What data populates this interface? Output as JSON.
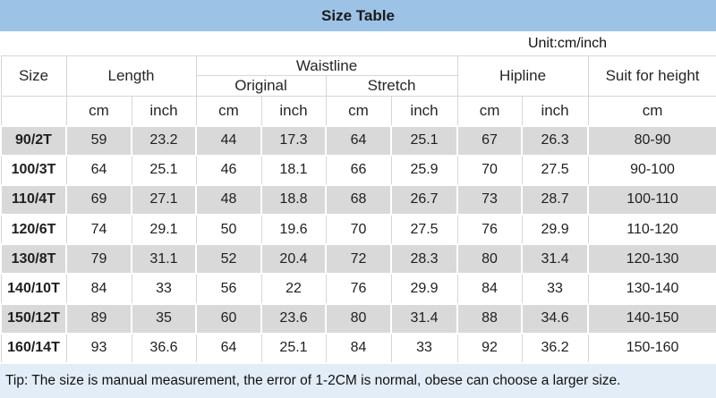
{
  "title": "Size Table",
  "unit_note": "Unit:cm/inch",
  "tip": "Tip: The size is manual measurement, the error of 1-2CM is normal, obese can choose a larger size.",
  "colors": {
    "title_bg": "#9cc2e6",
    "row_alt": "#d9d9d9",
    "tip_bg": "#e3edf8",
    "size_red": "#e11616",
    "grid": "#d6d6d6"
  },
  "headers": {
    "size": "Size",
    "length": "Length",
    "waistline": "Waistline",
    "original": "Original",
    "stretch": "Stretch",
    "hipline": "Hipline",
    "suit_for_height": "Suit for height"
  },
  "unit_headers": [
    "cm",
    "inch",
    "cm",
    "inch",
    "cm",
    "inch",
    "cm",
    "inch",
    "cm"
  ],
  "rows": [
    {
      "size": "90/2T",
      "values": [
        "59",
        "23.2",
        "44",
        "17.3",
        "64",
        "25.1",
        "67",
        "26.3",
        "80-90"
      ]
    },
    {
      "size": "100/3T",
      "values": [
        "64",
        "25.1",
        "46",
        "18.1",
        "66",
        "25.9",
        "70",
        "27.5",
        "90-100"
      ]
    },
    {
      "size": "110/4T",
      "values": [
        "69",
        "27.1",
        "48",
        "18.8",
        "68",
        "26.7",
        "73",
        "28.7",
        "100-110"
      ]
    },
    {
      "size": "120/6T",
      "values": [
        "74",
        "29.1",
        "50",
        "19.6",
        "70",
        "27.5",
        "76",
        "29.9",
        "110-120"
      ]
    },
    {
      "size": "130/8T",
      "values": [
        "79",
        "31.1",
        "52",
        "20.4",
        "72",
        "28.3",
        "80",
        "31.4",
        "120-130"
      ]
    },
    {
      "size": "140/10T",
      "values": [
        "84",
        "33",
        "56",
        "22",
        "76",
        "29.9",
        "84",
        "33",
        "130-140"
      ]
    },
    {
      "size": "150/12T",
      "values": [
        "89",
        "35",
        "60",
        "23.6",
        "80",
        "31.4",
        "88",
        "34.6",
        "140-150"
      ]
    },
    {
      "size": "160/14T",
      "values": [
        "93",
        "36.6",
        "64",
        "25.1",
        "84",
        "33",
        "92",
        "36.2",
        "150-160"
      ]
    }
  ],
  "chart_data": {
    "type": "table",
    "title": "Size Table",
    "unit": "cm/inch",
    "columns": [
      "Size",
      "Length cm",
      "Length inch",
      "Waistline Original cm",
      "Waistline Original inch",
      "Waistline Stretch cm",
      "Waistline Stretch inch",
      "Hipline cm",
      "Hipline inch",
      "Suit for height cm"
    ],
    "rows": [
      [
        "90/2T",
        59,
        23.2,
        44,
        17.3,
        64,
        25.1,
        67,
        26.3,
        "80-90"
      ],
      [
        "100/3T",
        64,
        25.1,
        46,
        18.1,
        66,
        25.9,
        70,
        27.5,
        "90-100"
      ],
      [
        "110/4T",
        69,
        27.1,
        48,
        18.8,
        68,
        26.7,
        73,
        28.7,
        "100-110"
      ],
      [
        "120/6T",
        74,
        29.1,
        50,
        19.6,
        70,
        27.5,
        76,
        29.9,
        "110-120"
      ],
      [
        "130/8T",
        79,
        31.1,
        52,
        20.4,
        72,
        28.3,
        80,
        31.4,
        "120-130"
      ],
      [
        "140/10T",
        84,
        33,
        56,
        22,
        76,
        29.9,
        84,
        33,
        "130-140"
      ],
      [
        "150/12T",
        89,
        35,
        60,
        23.6,
        80,
        31.4,
        88,
        34.6,
        "140-150"
      ],
      [
        "160/14T",
        93,
        36.6,
        64,
        25.1,
        84,
        33,
        92,
        36.2,
        "150-160"
      ]
    ],
    "footnote": "Tip: The size is manual measurement, the error of 1-2CM is normal, obese can choose a larger size."
  }
}
